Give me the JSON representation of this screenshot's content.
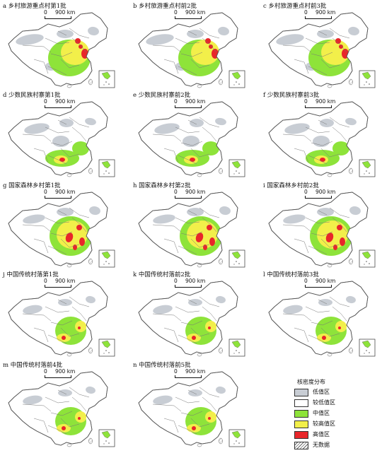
{
  "panels": [
    {
      "title": "a 乡村旅游重点村第1批",
      "level": "high-east"
    },
    {
      "title": "b 乡村旅游重点村前2批",
      "level": "high-east"
    },
    {
      "title": "c 乡村旅游重点村前3批",
      "level": "high-east"
    },
    {
      "title": "d 少数民族村寨第1批",
      "level": "south-west"
    },
    {
      "title": "e 少数民族村寨前2批",
      "level": "south-west"
    },
    {
      "title": "f 少数民族村寨前3批",
      "level": "south-west"
    },
    {
      "title": "g 国家森林乡村第1批",
      "level": "forest"
    },
    {
      "title": "h 国家森林乡村第2批",
      "level": "forest"
    },
    {
      "title": "i 国家森林乡村前2批",
      "level": "forest"
    },
    {
      "title": "j 中国传统村落第1批",
      "level": "traditional"
    },
    {
      "title": "k 中国传统村落前2批",
      "level": "traditional"
    },
    {
      "title": "l 中国传统村落前3批",
      "level": "traditional"
    },
    {
      "title": "m 中国传统村落前4批",
      "level": "traditional"
    },
    {
      "title": "n 中国传统村落前5批",
      "level": "traditional"
    }
  ],
  "scale": {
    "zero": "0",
    "distance": "900 km"
  },
  "legend": {
    "title": "核密度分布",
    "items": [
      {
        "label": "低值区",
        "color": "#c8cdd4"
      },
      {
        "label": "较低值区",
        "color": "#ffffff"
      },
      {
        "label": "中值区",
        "color": "#8ee33a"
      },
      {
        "label": "较高值区",
        "color": "#f2ef4a"
      },
      {
        "label": "高值区",
        "color": "#e8262a"
      },
      {
        "label": "无数据",
        "color": "hatch"
      }
    ]
  }
}
